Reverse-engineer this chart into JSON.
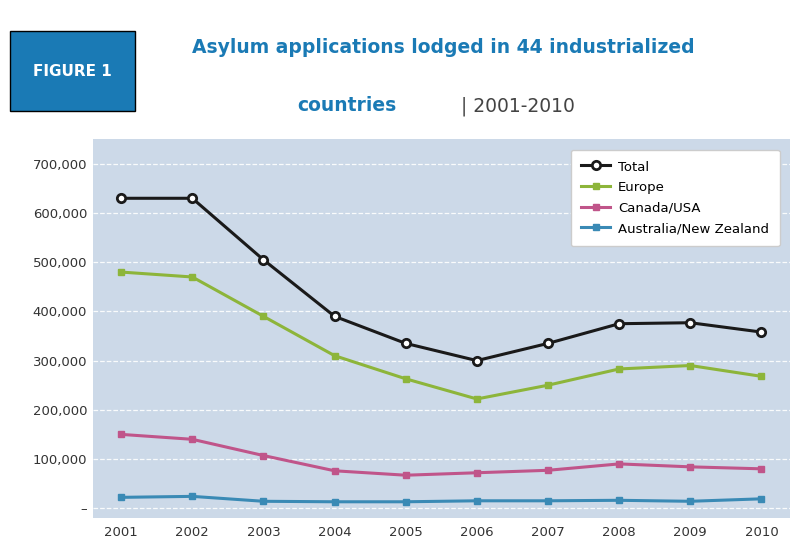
{
  "years": [
    2001,
    2002,
    2003,
    2004,
    2005,
    2006,
    2007,
    2008,
    2009,
    2010
  ],
  "total": [
    630000,
    630000,
    505000,
    390000,
    335000,
    300000,
    335000,
    375000,
    377000,
    358000
  ],
  "europe": [
    480000,
    470000,
    390000,
    310000,
    263000,
    222000,
    250000,
    283000,
    290000,
    268000
  ],
  "canada_usa": [
    150000,
    140000,
    107000,
    76000,
    67000,
    72000,
    77000,
    90000,
    84000,
    80000
  ],
  "australia_nz": [
    22000,
    24000,
    14000,
    13000,
    13000,
    15000,
    15000,
    16000,
    14000,
    19000
  ],
  "title_line1": "Asylum applications lodged in 44 industrialized",
  "title_line2_bold": "countries",
  "title_line2_plain": " | 2001-2010",
  "fig_label": "FIGURE 1",
  "plot_bg_color": "#ccd9e8",
  "header_bg": "#ffffff",
  "fig_label_bg": "#1a7ab5",
  "title_color": "#1a7ab5",
  "total_color": "#1a1a1a",
  "europe_color": "#8db53a",
  "canada_color": "#c0558a",
  "australia_color": "#3a8ab5",
  "grid_color": "#ffffff",
  "ylim": [
    -20000,
    750000
  ],
  "yticks": [
    0,
    100000,
    200000,
    300000,
    400000,
    500000,
    600000,
    700000
  ]
}
